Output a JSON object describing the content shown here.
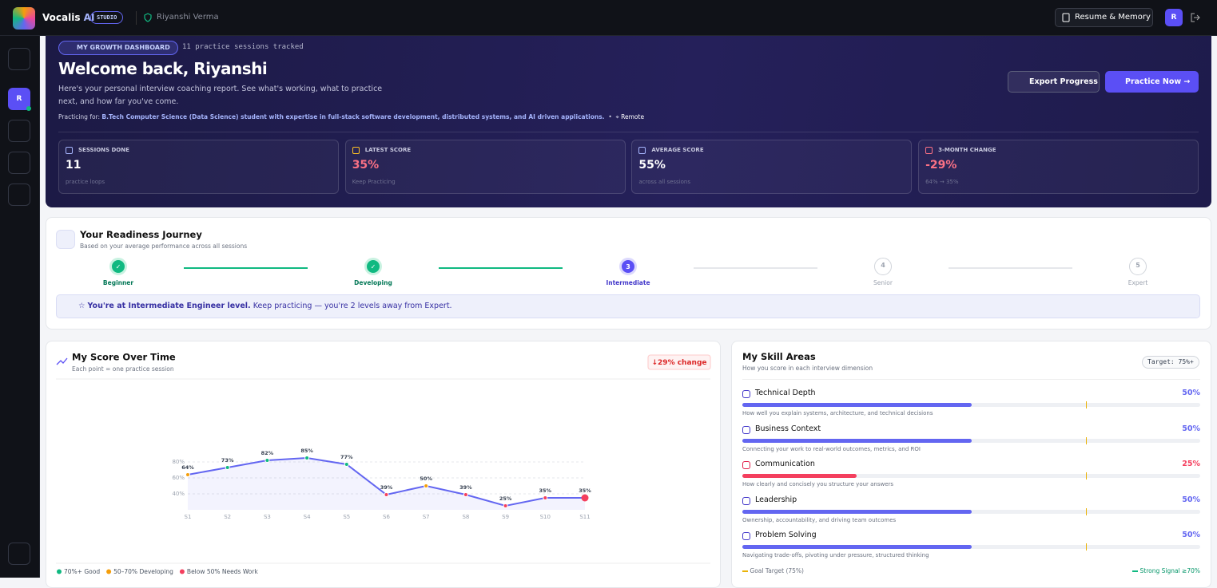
{
  "header": {
    "brand": "Vocalis",
    "brand_accent": "AI",
    "badge": "STUDIO",
    "user": "Riyanshi Verma",
    "button": "Resume & Memory",
    "avatar": "R"
  },
  "sidebar": {
    "avatar": "R"
  },
  "hero": {
    "badge": "MY GROWTH DASHBOARD",
    "sessions_note": "11 practice sessions tracked",
    "title": "Welcome back, Riyanshi",
    "subtitle": "Here's your personal interview coaching report. See what's working, what to practice next, and how far you've come.",
    "practicing_label": "Practicing for:",
    "role": "B.Tech Computer Science (Data Science) student with expertise in full-stack software development, distributed systems, and AI driven applications.",
    "location": "Remote",
    "export_button": "Export Progress",
    "practice_button": "Practice Now",
    "stats": [
      {
        "label": "SESSIONS DONE",
        "value": "11",
        "note": "practice loops",
        "color": "#ffffff",
        "icon_color": "#a5b4fc"
      },
      {
        "label": "LATEST SCORE",
        "value": "35%",
        "note": "Keep Practicing",
        "color": "#fb7185",
        "icon_color": "#fbbf24"
      },
      {
        "label": "AVERAGE SCORE",
        "value": "55%",
        "note": "across all sessions",
        "color": "#ffffff",
        "icon_color": "#a5b4fc"
      },
      {
        "label": "3-MONTH CHANGE",
        "value": "-29%",
        "note": "64% → 35%",
        "color": "#fb7185",
        "icon_color": "#fb7185"
      }
    ]
  },
  "readiness": {
    "title": "Your Readiness Journey",
    "subtitle": "Based on your average performance across all sessions",
    "steps": [
      {
        "label": "Beginner",
        "status": "done"
      },
      {
        "label": "Developing",
        "status": "done"
      },
      {
        "number": "3",
        "label": "Intermediate",
        "status": "current"
      },
      {
        "number": "4",
        "label": "Senior",
        "status": "upcoming"
      },
      {
        "number": "5",
        "label": "Expert",
        "status": "upcoming"
      }
    ],
    "message_bold": "You're at Intermediate Engineer level.",
    "message_rest": "Keep practicing — you're 2 levels away from Expert."
  },
  "chart_data": {
    "type": "line",
    "title": "My Score Over Time",
    "subtitle": "Each point = one practice session",
    "change": "↓29% change",
    "categories": [
      "S1",
      "S2",
      "S3",
      "S4",
      "S5",
      "S6",
      "S7",
      "S8",
      "S9",
      "S10",
      "S11"
    ],
    "values": [
      64,
      73,
      82,
      85,
      77,
      39,
      50,
      39,
      25,
      35,
      35
    ],
    "value_labels": [
      "64%",
      "73%",
      "82%",
      "85%",
      "77%",
      "39%",
      "50%",
      "39%",
      "25%",
      "35%",
      "35%"
    ],
    "ylim": [
      20,
      90
    ],
    "yticks": [
      {
        "value": 40,
        "label": "40%"
      },
      {
        "value": 60,
        "label": "60%"
      },
      {
        "value": 80,
        "label": "80%"
      }
    ],
    "grid": true,
    "color": "#6366f1",
    "bands": [
      {
        "min": 70,
        "label": "70%+ Good",
        "color": "#10b981"
      },
      {
        "min": 50,
        "label": "50–70% Developing",
        "color": "#f59e0b"
      },
      {
        "label": "Below 50% Needs Work",
        "color": "#f43f5e"
      }
    ]
  },
  "skills": {
    "title": "My Skill Areas",
    "subtitle": "How you score in each interview dimension",
    "target_label": "Target: 75%+",
    "target": 75,
    "xlim": [
      0,
      100
    ],
    "items": [
      {
        "name": "Technical Depth",
        "value": 50,
        "value_label": "50%",
        "description": "How well you explain systems, architecture, and technical decisions",
        "color": "#6366f1"
      },
      {
        "name": "Business Context",
        "value": 50,
        "value_label": "50%",
        "description": "Connecting your work to real-world outcomes, metrics, and ROI",
        "color": "#6366f1"
      },
      {
        "name": "Communication",
        "value": 25,
        "value_label": "25%",
        "description": "How clearly and concisely you structure your answers",
        "color": "#f43f5e"
      },
      {
        "name": "Leadership",
        "value": 50,
        "value_label": "50%",
        "description": "Ownership, accountability, and driving team outcomes",
        "color": "#6366f1"
      },
      {
        "name": "Problem Solving",
        "value": 50,
        "value_label": "50%",
        "description": "Navigating trade-offs, pivoting under pressure, structured thinking",
        "color": "#6366f1"
      }
    ],
    "goal_legend": "Goal Target (75%)",
    "strong_legend": "Strong Signal ≥70%"
  }
}
